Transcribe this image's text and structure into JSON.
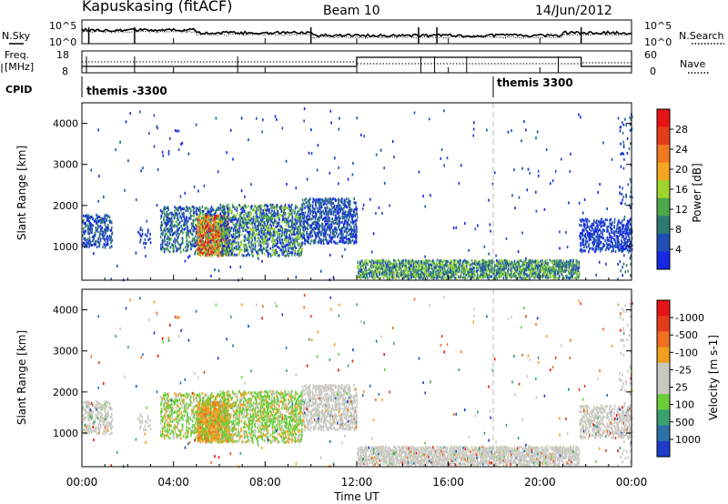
{
  "header": {
    "station": "Kapuskasing (fitACF)",
    "beam": "Beam 10",
    "date": "14/Jun/2012"
  },
  "top_panels": {
    "nsky_label": "N.Sky",
    "nsearch_label": "N.Search",
    "freq_label_1": "Freq.",
    "freq_label_2": "[MHz]",
    "nave_label": "Nave",
    "cpid_label": "CPID",
    "noise_ticks_left": [
      "10^5",
      "10^0"
    ],
    "noise_ticks_right": [
      "10^5",
      "10^0"
    ],
    "freq_ticks": [
      "18",
      "8"
    ],
    "nave_ticks": [
      "60",
      "0"
    ],
    "cpid_segments": [
      {
        "label": "themis -3300",
        "start_hour": 0.0
      },
      {
        "label": "themis 3300",
        "start_hour": 18.0
      }
    ]
  },
  "chart_data": [
    {
      "type": "heatmap",
      "panel": "power",
      "ylabel": "Slant Range [km]",
      "yticks": [
        "1000",
        "2000",
        "3000",
        "4000"
      ],
      "ylim": [
        180,
        4500
      ],
      "colorbar_label": "Power [dB]",
      "colorbar_ticks": [
        "4",
        "8",
        "12",
        "16",
        "20",
        "24",
        "28"
      ],
      "colors": [
        "#1428e6",
        "#1f4fb4",
        "#2f7a70",
        "#4aa84a",
        "#9fd42e",
        "#f5a623",
        "#f07a1e",
        "#e63c1e",
        "#e61414"
      ]
    },
    {
      "type": "heatmap",
      "panel": "velocity",
      "ylabel": "Slant Range [km]",
      "yticks": [
        "1000",
        "2000",
        "3000",
        "4000"
      ],
      "ylim": [
        180,
        4500
      ],
      "colorbar_label": "Velocity [m s-1]",
      "colorbar_ticks": [
        "1000",
        "500",
        "100",
        "25",
        "-25",
        "-100",
        "-500",
        "-1000"
      ],
      "colors": [
        "#1e3cc8",
        "#2a72a8",
        "#3aa070",
        "#6acd3a",
        "#c8c8c0",
        "#c8c8c0",
        "#f0a020",
        "#f07020",
        "#e63c1e",
        "#e61414"
      ]
    }
  ],
  "xaxis": {
    "label": "Time UT",
    "ticks": [
      "00:00",
      "04:00",
      "08:00",
      "12:00",
      "16:00",
      "20:00",
      "00:00"
    ],
    "range_hours": [
      0,
      24
    ]
  }
}
